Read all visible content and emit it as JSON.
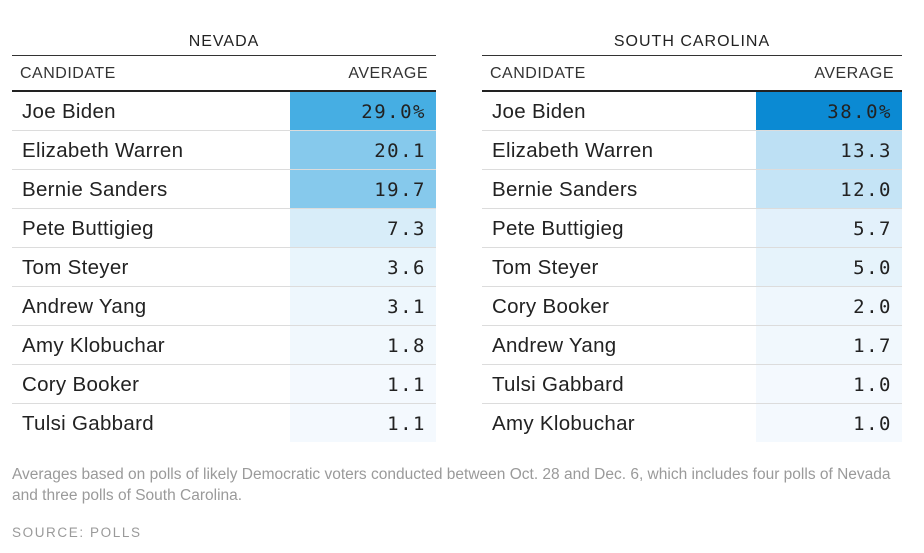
{
  "chart_data": [
    {
      "type": "table",
      "title": "NEVADA",
      "columns": [
        "CANDIDATE",
        "AVERAGE"
      ],
      "rows": [
        {
          "candidate": "Joe Biden",
          "average": 29.0,
          "label": "29.0%",
          "color": "#46aee3"
        },
        {
          "candidate": "Elizabeth Warren",
          "average": 20.1,
          "label": "20.1",
          "color": "#86c9ec"
        },
        {
          "candidate": "Bernie Sanders",
          "average": 19.7,
          "label": "19.7",
          "color": "#86c9ec"
        },
        {
          "candidate": "Pete Buttigieg",
          "average": 7.3,
          "label": "7.3",
          "color": "#d8edf9"
        },
        {
          "candidate": "Tom Steyer",
          "average": 3.6,
          "label": "3.6",
          "color": "#e9f5fc"
        },
        {
          "candidate": "Andrew Yang",
          "average": 3.1,
          "label": "3.1",
          "color": "#eef7fd"
        },
        {
          "candidate": "Amy Klobuchar",
          "average": 1.8,
          "label": "1.8",
          "color": "#f1f8fd"
        },
        {
          "candidate": "Cory Booker",
          "average": 1.1,
          "label": "1.1",
          "color": "#f4f9fe"
        },
        {
          "candidate": "Tulsi Gabbard",
          "average": 1.1,
          "label": "1.1",
          "color": "#f4f9fe"
        }
      ]
    },
    {
      "type": "table",
      "title": "SOUTH CAROLINA",
      "columns": [
        "CANDIDATE",
        "AVERAGE"
      ],
      "rows": [
        {
          "candidate": "Joe Biden",
          "average": 38.0,
          "label": "38.0%",
          "color": "#0b8ad3"
        },
        {
          "candidate": "Elizabeth Warren",
          "average": 13.3,
          "label": "13.3",
          "color": "#bde0f4"
        },
        {
          "candidate": "Bernie Sanders",
          "average": 12.0,
          "label": "12.0",
          "color": "#c5e4f6"
        },
        {
          "candidate": "Pete Buttigieg",
          "average": 5.7,
          "label": "5.7",
          "color": "#e3f1fb"
        },
        {
          "candidate": "Tom Steyer",
          "average": 5.0,
          "label": "5.0",
          "color": "#e6f3fb"
        },
        {
          "candidate": "Cory Booker",
          "average": 2.0,
          "label": "2.0",
          "color": "#eff7fd"
        },
        {
          "candidate": "Andrew Yang",
          "average": 1.7,
          "label": "1.7",
          "color": "#f1f8fd"
        },
        {
          "candidate": "Tulsi Gabbard",
          "average": 1.0,
          "label": "1.0",
          "color": "#f4f9fe"
        },
        {
          "candidate": "Amy Klobuchar",
          "average": 1.0,
          "label": "1.0",
          "color": "#f4f9fe"
        }
      ]
    }
  ],
  "footnote": "Averages based on polls of likely Democratic voters conducted between Oct. 28 and Dec. 6, which includes four polls of Nevada and three polls of South Carolina.",
  "source": "SOURCE: POLLS"
}
